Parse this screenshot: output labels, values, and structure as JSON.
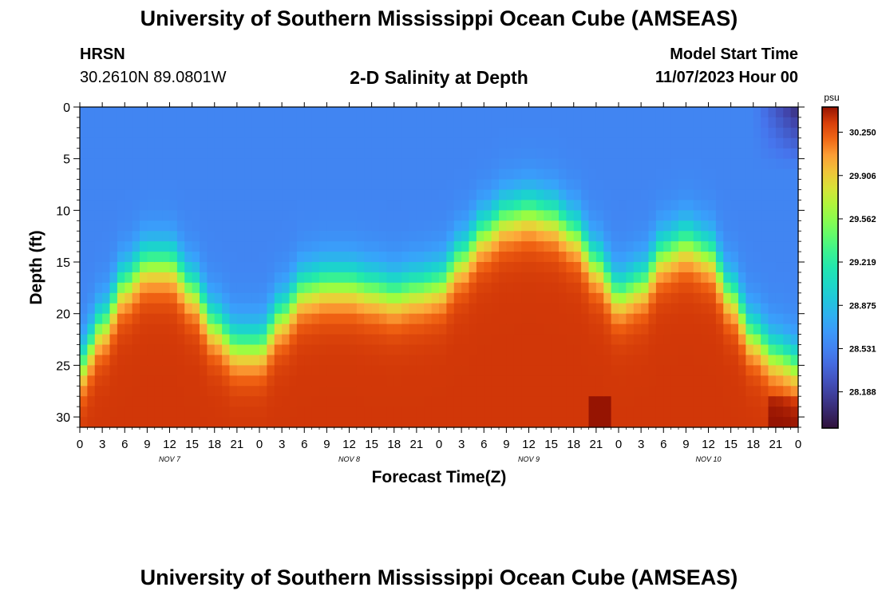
{
  "page": {
    "title": "University of Southern Mississippi Ocean Cube (AMSEAS)",
    "title_repeat": "University of Southern Mississippi Ocean Cube (AMSEAS)",
    "station_name": "HRSN",
    "station_coords": "30.2610N  89.0801W",
    "subtitle": "2-D Salinity at Depth",
    "model_start_label": "Model Start Time",
    "model_start_value": "11/07/2023 Hour 00"
  },
  "chart_data": {
    "type": "heatmap",
    "title": "2-D Salinity at Depth",
    "xlabel": "Forecast Time(Z)",
    "ylabel": "Depth (ft)",
    "x_range_hours": [
      0,
      96
    ],
    "y_range_ft": [
      0,
      31
    ],
    "x_tick_labels": [
      "0",
      "3",
      "6",
      "9",
      "12",
      "15",
      "18",
      "21",
      "0",
      "3",
      "6",
      "9",
      "12",
      "15",
      "18",
      "21",
      "0",
      "3",
      "6",
      "9",
      "12",
      "15",
      "18",
      "21",
      "0",
      "3",
      "6",
      "9",
      "12",
      "15",
      "18",
      "21",
      "0"
    ],
    "date_labels": [
      {
        "label": "NOV 7",
        "hour": 12
      },
      {
        "label": "NOV 8",
        "hour": 36
      },
      {
        "label": "NOV 9",
        "hour": 60
      },
      {
        "label": "NOV 10",
        "hour": 84
      }
    ],
    "y_ticks": [
      0,
      5,
      10,
      15,
      20,
      25,
      30
    ],
    "y_tick_labels": [
      "0",
      "5",
      "10",
      "15",
      "20",
      "25",
      "30"
    ],
    "colorbar": {
      "unit": "psu",
      "min": 27.9,
      "max": 30.45,
      "tick_labels": [
        "30.250",
        "29.906",
        "29.562",
        "29.219",
        "28.875",
        "28.531",
        "28.188"
      ],
      "tick_values": [
        30.25,
        29.906,
        29.562,
        29.219,
        28.875,
        28.531,
        28.188
      ]
    },
    "halocline_depth_ft": {
      "hours": [
        0,
        3,
        6,
        9,
        12,
        15,
        18,
        21,
        24,
        27,
        30,
        33,
        36,
        39,
        42,
        45,
        48,
        51,
        54,
        57,
        60,
        63,
        66,
        69,
        72,
        75,
        78,
        81,
        84,
        87,
        90,
        93,
        96
      ],
      "depth": [
        25,
        21,
        17,
        15,
        15,
        17.5,
        21,
        23,
        23,
        20,
        17.5,
        17,
        17,
        17.5,
        18,
        17.5,
        17,
        14.5,
        12,
        10.5,
        10,
        10.5,
        12,
        15,
        18,
        17,
        14,
        13,
        14,
        18,
        22,
        24,
        25
      ]
    },
    "surface_salinity_psu": 28.55,
    "bottom_salinity_psu": 30.35
  }
}
